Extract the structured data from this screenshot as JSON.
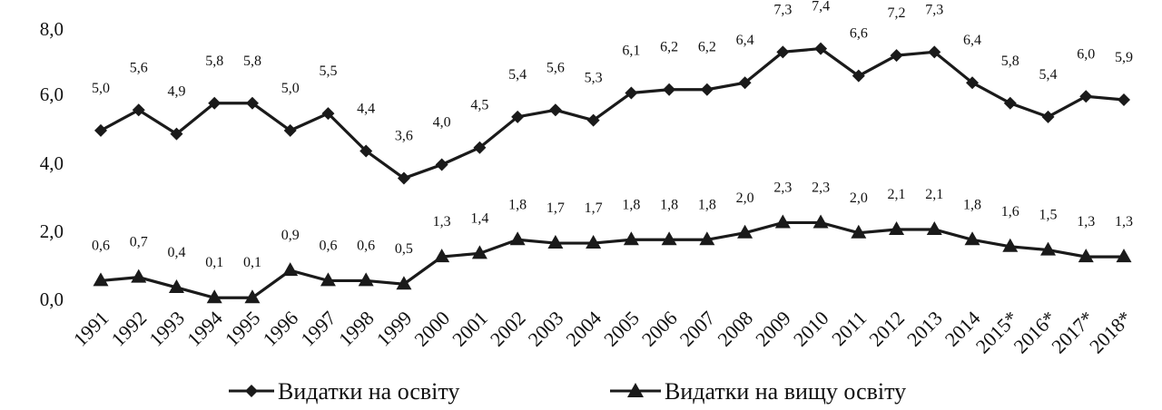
{
  "chart_data": {
    "type": "line",
    "categories": [
      "1991",
      "1992",
      "1993",
      "1994",
      "1995",
      "1996",
      "1997",
      "1998",
      "1999",
      "2000",
      "2001",
      "2002",
      "2003",
      "2004",
      "2005",
      "2006",
      "2007",
      "2008",
      "2009",
      "2010",
      "2011",
      "2012",
      "2013",
      "2014",
      "2015*",
      "2016*",
      "2017*",
      "2018*"
    ],
    "series": [
      {
        "name": "Видатки на освіту",
        "marker": "diamond",
        "values": [
          5.0,
          5.6,
          4.9,
          5.8,
          5.8,
          5.0,
          5.5,
          4.4,
          3.6,
          4.0,
          4.5,
          5.4,
          5.6,
          5.3,
          6.1,
          6.2,
          6.2,
          6.4,
          7.3,
          7.4,
          6.6,
          7.2,
          7.3,
          6.4,
          5.8,
          5.4,
          6.0,
          5.9
        ],
        "labels": [
          "5,0",
          "5,6",
          "4,9",
          "5,8",
          "5,8",
          "5,0",
          "5,5",
          "4,4",
          "3,6",
          "4,0",
          "4,5",
          "5,4",
          "5,6",
          "5,3",
          "6,1",
          "6,2",
          "6,2",
          "6,4",
          "7,3",
          "7,4",
          "6,6",
          "7,2",
          "7,3",
          "6,4",
          "5,8",
          "5,4",
          "6,0",
          "5,9"
        ]
      },
      {
        "name": "Видатки на вищу освіту",
        "marker": "triangle",
        "values": [
          0.6,
          0.7,
          0.4,
          0.1,
          0.1,
          0.9,
          0.6,
          0.6,
          0.5,
          1.3,
          1.4,
          1.8,
          1.7,
          1.7,
          1.8,
          1.8,
          1.8,
          2.0,
          2.3,
          2.3,
          2.0,
          2.1,
          2.1,
          1.8,
          1.6,
          1.5,
          1.3,
          1.3
        ],
        "labels": [
          "0,6",
          "0,7",
          "0,4",
          "0,1",
          "0,1",
          "0,9",
          "0,6",
          "0,6",
          "0,5",
          "1,3",
          "1,4",
          "1,8",
          "1,7",
          "1,7",
          "1,8",
          "1,8",
          "1,8",
          "2,0",
          "2,3",
          "2,3",
          "2,0",
          "2,1",
          "2,1",
          "1,8",
          "1,6",
          "1,5",
          "1,3",
          "1,3"
        ]
      }
    ],
    "yticks": [
      "0,0",
      "2,0",
      "4,0",
      "6,0",
      "8,0"
    ],
    "ylim": [
      0,
      8
    ],
    "grid": false,
    "legend_position": "bottom",
    "line_color": "#1a1a1a"
  }
}
